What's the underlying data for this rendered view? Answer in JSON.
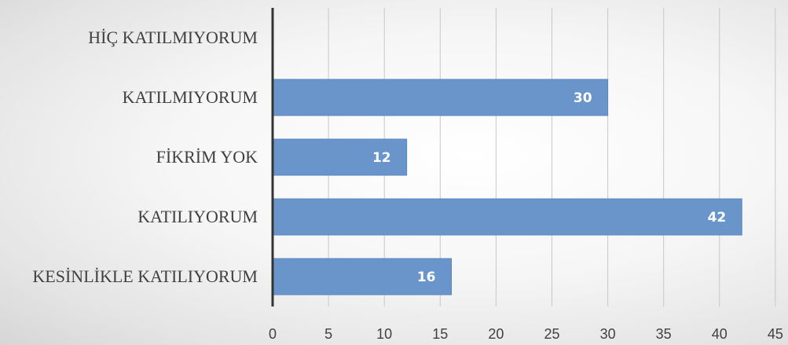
{
  "chart_data": {
    "type": "bar",
    "orientation": "horizontal",
    "title": "",
    "xlabel": "",
    "ylabel": "",
    "categories": [
      "HİÇ KATILMIYORUM",
      "KATILMIYORUM",
      "FİKRİM YOK",
      "KATILIYORUM",
      "KESİNLİKLE KATILIYORUM"
    ],
    "values": [
      0,
      30,
      12,
      42,
      16
    ],
    "data_labels": [
      "",
      "30",
      "12",
      "42",
      "16"
    ],
    "xlim": [
      0,
      45
    ],
    "x_ticks": [
      "0",
      "5",
      "10",
      "15",
      "20",
      "25",
      "30",
      "35",
      "40",
      "45"
    ],
    "grid": true,
    "legend": false,
    "bar_color": "#6a95cb",
    "bar_border_color": "#5a86bf"
  }
}
